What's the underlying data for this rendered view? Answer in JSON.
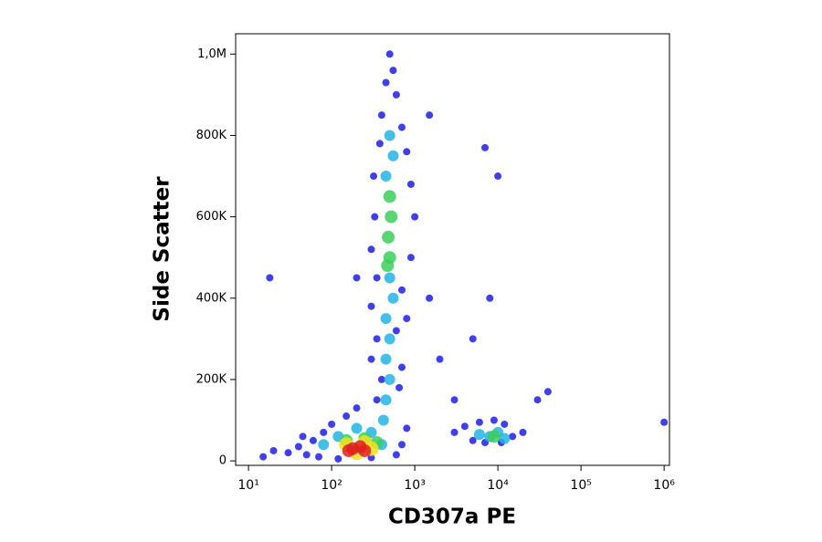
{
  "chart_data": {
    "type": "scatter",
    "x_label": "CD307a PE",
    "y_label": "Side Scatter",
    "xscale": "log",
    "xlim": [
      7,
      1160000
    ],
    "xticks": [
      {
        "value": 10,
        "label": "10¹"
      },
      {
        "value": 100,
        "label": "10²"
      },
      {
        "value": 1000,
        "label": "10³"
      },
      {
        "value": 10000,
        "label": "10⁴"
      },
      {
        "value": 100000,
        "label": "10⁵"
      },
      {
        "value": 1000000,
        "label": "10⁶"
      }
    ],
    "ylim": [
      -11000,
      1050000
    ],
    "yticks": [
      0,
      {
        "value": 200000,
        "label": "200K"
      },
      {
        "value": 400000,
        "label": "400K"
      },
      {
        "value": 600000,
        "label": "600K"
      },
      {
        "value": 800000,
        "label": "800K"
      },
      {
        "value": 1000000,
        "label": "1,0M"
      }
    ],
    "series": [
      {
        "color": "#1e1ee6",
        "x": [
          30,
          40,
          50,
          60,
          80,
          100,
          150,
          200,
          70,
          120,
          300,
          600,
          700,
          800,
          20,
          15,
          45,
          350,
          400,
          300,
          700,
          650,
          350,
          600,
          800,
          300,
          700,
          350,
          900,
          300,
          1000,
          330,
          900,
          320,
          800,
          380,
          700,
          400,
          600,
          450,
          550,
          500,
          2000,
          1500,
          3000,
          5000,
          8000,
          10000,
          7000,
          1500,
          200,
          18,
          3000,
          4000,
          5000,
          6000,
          9000,
          12000,
          15000,
          20000,
          7000,
          11000,
          30000,
          40000,
          1000000
        ],
        "values": [
          20000,
          35000,
          15000,
          50000,
          70000,
          90000,
          110000,
          130000,
          10000,
          5000,
          8000,
          15000,
          40000,
          80000,
          25000,
          10000,
          60000,
          150000,
          200000,
          250000,
          230000,
          180000,
          300000,
          320000,
          350000,
          380000,
          420000,
          450000,
          500000,
          520000,
          600000,
          600000,
          680000,
          700000,
          760000,
          780000,
          820000,
          850000,
          900000,
          930000,
          960000,
          1000000,
          250000,
          400000,
          150000,
          300000,
          400000,
          700000,
          770000,
          850000,
          450000,
          450000,
          70000,
          85000,
          50000,
          95000,
          100000,
          90000,
          60000,
          70000,
          45000,
          45000,
          150000,
          170000,
          95000
        ]
      },
      {
        "color": "#22b4e6",
        "x": [
          450,
          500,
          450,
          550,
          500,
          450,
          500,
          450,
          550,
          500,
          420,
          120,
          200,
          300,
          80,
          400,
          6000,
          8000,
          10000,
          12000
        ],
        "values": [
          250000,
          300000,
          350000,
          400000,
          200000,
          150000,
          450000,
          700000,
          750000,
          800000,
          100000,
          60000,
          80000,
          70000,
          40000,
          40000,
          65000,
          60000,
          70000,
          55000
        ]
      },
      {
        "color": "#3ccf5a",
        "x": [
          500,
          480,
          520,
          500,
          470,
          150,
          250,
          350,
          9000
        ],
        "values": [
          500000,
          550000,
          600000,
          650000,
          480000,
          50000,
          55000,
          45000,
          60000
        ]
      },
      {
        "color": "#f0e020",
        "x": [
          150,
          250,
          300,
          200
        ],
        "values": [
          40000,
          45000,
          30000,
          20000
        ]
      },
      {
        "color": "#e02020",
        "x": [
          180,
          220,
          160,
          250
        ],
        "values": [
          30000,
          35000,
          25000,
          25000
        ]
      }
    ]
  }
}
